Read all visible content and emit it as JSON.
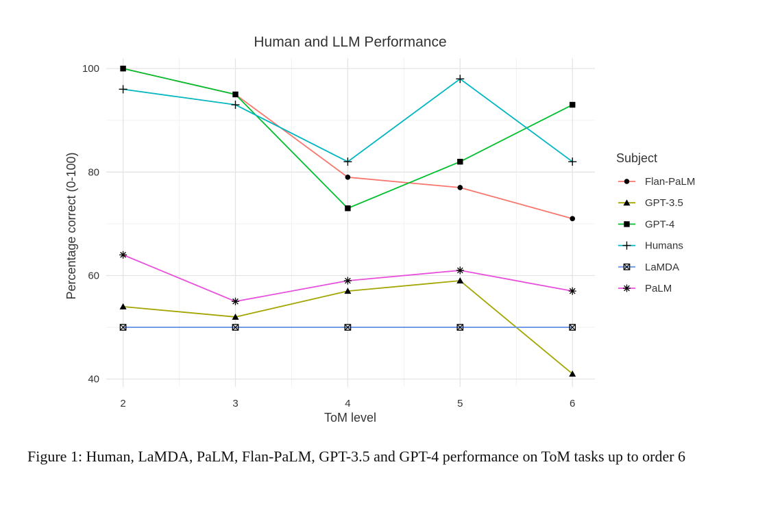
{
  "chart_data": {
    "type": "line",
    "title": "Human and LLM Performance",
    "xlabel": "ToM level",
    "ylabel": "Percentage correct (0-100)",
    "x": [
      2,
      3,
      4,
      5,
      6
    ],
    "x_ticks": [
      "2",
      "3",
      "4",
      "5",
      "6"
    ],
    "y_ticks": [
      "40",
      "60",
      "80",
      "100"
    ],
    "xlim": [
      1.85,
      6.2
    ],
    "ylim": [
      38.5,
      102
    ],
    "grid": true,
    "legend_title": "Subject",
    "legend_position": "right",
    "series": [
      {
        "name": "Flan-PaLM",
        "color": "#F8766D",
        "marker": "circle",
        "values": [
          100,
          95,
          79,
          77,
          71
        ]
      },
      {
        "name": "GPT-3.5",
        "color": "#A3A500",
        "marker": "triangle",
        "values": [
          54,
          52,
          57,
          59,
          41
        ]
      },
      {
        "name": "GPT-4",
        "color": "#00BF2E",
        "marker": "square",
        "values": [
          100,
          95,
          73,
          82,
          93
        ]
      },
      {
        "name": "Humans",
        "color": "#00B6C0",
        "marker": "plus",
        "values": [
          96,
          93,
          82,
          98,
          82
        ]
      },
      {
        "name": "LaMDA",
        "color": "#6A95E6",
        "marker": "boxed-x",
        "values": [
          50,
          50,
          50,
          50,
          50
        ]
      },
      {
        "name": "PaLM",
        "color": "#E84FDB",
        "marker": "asterisk",
        "values": [
          64,
          55,
          59,
          61,
          57
        ]
      }
    ]
  },
  "caption": "Figure 1: Human, LaMDA, PaLM, Flan-PaLM, GPT-3.5 and GPT-4 performance on ToM tasks up to order 6"
}
